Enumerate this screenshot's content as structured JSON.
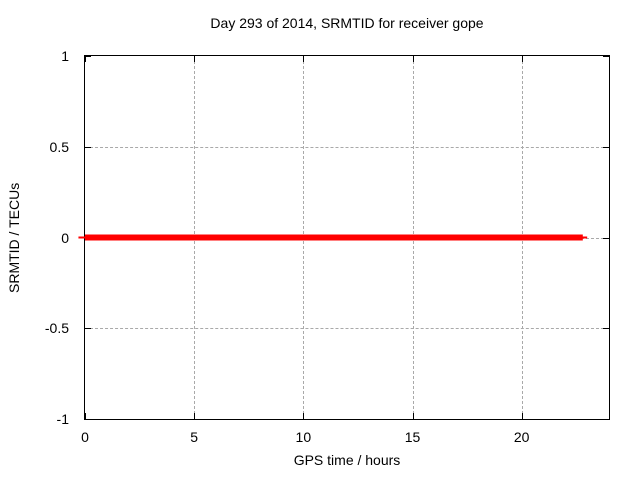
{
  "chart_data": {
    "type": "line",
    "title": "Day 293 of 2014, SRMTID for receiver gope",
    "xlabel": "GPS time / hours",
    "ylabel": "SRMTID / TECUs",
    "xlim": [
      0,
      24
    ],
    "ylim": [
      -1,
      1
    ],
    "xticks": {
      "values": [
        0,
        5,
        10,
        15,
        20
      ],
      "labels": [
        "0",
        "5",
        "10",
        "15",
        "20"
      ]
    },
    "yticks": {
      "values": [
        1,
        0.5,
        0,
        -0.5,
        -1
      ],
      "labels": [
        "1",
        "0.5",
        "0",
        "-0.5",
        "-1"
      ]
    },
    "grid": "dashed",
    "grid_color": "#a9a9a9",
    "border_color": "#000000",
    "background": "#ffffff",
    "legend": "none",
    "series": [
      {
        "name": "SRMTID",
        "color": "#ff0000",
        "stroke_px": 6,
        "points": [
          [
            0,
            0
          ],
          [
            22.8,
            0
          ]
        ]
      },
      {
        "name": "SRMTID-thin-underlay",
        "color": "#ff0000",
        "stroke_px": 2,
        "points": [
          [
            -0.3,
            0
          ],
          [
            23.0,
            0
          ]
        ]
      }
    ]
  }
}
